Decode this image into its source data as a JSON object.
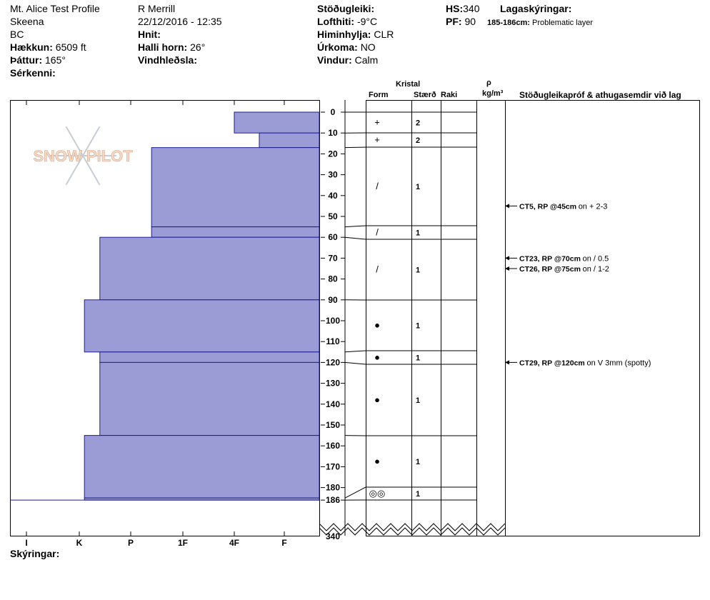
{
  "header": {
    "title": "Mt. Alice Test Profile",
    "range": "Skeena",
    "region": "BC",
    "elevation_label": "Hækkun:",
    "elevation": "6509 ft",
    "aspect_label": "Þáttur:",
    "aspect": "165°",
    "features_label": "Sérkenni:",
    "observer": "R Merrill",
    "datetime": "22/12/2016 - 12:35",
    "coords_label": "Hnit:",
    "slope_label": "Halli horn:",
    "slope": "26°",
    "wind_loading_label": "Vindhleðsla:",
    "stability_label": "Stöðugleiki:",
    "air_temp_label": "Lofthiti:",
    "air_temp": "-9°C",
    "sky_label": "Himinhylja:",
    "sky": "CLR",
    "precip_label": "Úrkoma:",
    "precip": "NO",
    "wind_label": "Vindur:",
    "wind": "Calm",
    "hs_label": "HS:",
    "hs": "340",
    "pf_label": "PF:",
    "pf": "90",
    "layer_notes_label": "Lagaskýringar:",
    "layer_note_range": "185-186cm:",
    "layer_note_text": "Problematic layer"
  },
  "columns": {
    "crystal": "Kristal",
    "form": "Form",
    "size": "Stærð",
    "moisture": "Raki",
    "density_symbol": "ρ",
    "density_unit": "kg/m³",
    "stability_tests": "Stöðugleikapróf & athugasemdir við lag"
  },
  "footer": {
    "legend_label": "Skýringar:"
  },
  "chart_data": {
    "type": "snow-profile",
    "hardness_scale": [
      "I",
      "K",
      "P",
      "1F",
      "4F",
      "F"
    ],
    "depth_ticks": [
      0,
      10,
      20,
      30,
      40,
      50,
      60,
      70,
      80,
      90,
      100,
      110,
      120,
      130,
      140,
      150,
      160,
      170,
      180,
      186
    ],
    "depth_bottom": 340,
    "profile_depth": 186,
    "depth_unit": "cm",
    "layers": [
      {
        "top": 0,
        "bottom": 10,
        "hardness": 1.0,
        "form": "+",
        "size": "2"
      },
      {
        "top": 10,
        "bottom": 17,
        "hardness": 0.5,
        "form": "+",
        "size": "2"
      },
      {
        "top": 17,
        "bottom": 55,
        "hardness": 2.6,
        "form": "/",
        "size": "1"
      },
      {
        "top": 55,
        "bottom": 60,
        "hardness": 2.6,
        "form": "/",
        "size": "1"
      },
      {
        "top": 60,
        "bottom": 90,
        "hardness": 3.6,
        "form": "/",
        "size": "1"
      },
      {
        "top": 90,
        "bottom": 115,
        "hardness": 3.9,
        "form": "●",
        "size": "1"
      },
      {
        "top": 115,
        "bottom": 120,
        "hardness": 3.6,
        "form": "●",
        "size": "1"
      },
      {
        "top": 120,
        "bottom": 155,
        "hardness": 3.6,
        "form": "●",
        "size": "1"
      },
      {
        "top": 155,
        "bottom": 185,
        "hardness": 3.9,
        "form": "●",
        "size": "1"
      },
      {
        "top": 185,
        "bottom": 186,
        "hardness": 3.9,
        "form": "◎◎",
        "size": "1"
      }
    ],
    "stability_tests": [
      {
        "depth": 45,
        "code": "CT5, RP @45cm",
        "note": "on + 2-3"
      },
      {
        "depth": 70,
        "code": "CT23, RP @70cm",
        "note": "on / 0.5"
      },
      {
        "depth": 75,
        "code": "CT26, RP @75cm",
        "note": "on / 1-2"
      },
      {
        "depth": 120,
        "code": "CT29, RP @120cm",
        "note": "on V 3mm (spotty)"
      }
    ]
  }
}
